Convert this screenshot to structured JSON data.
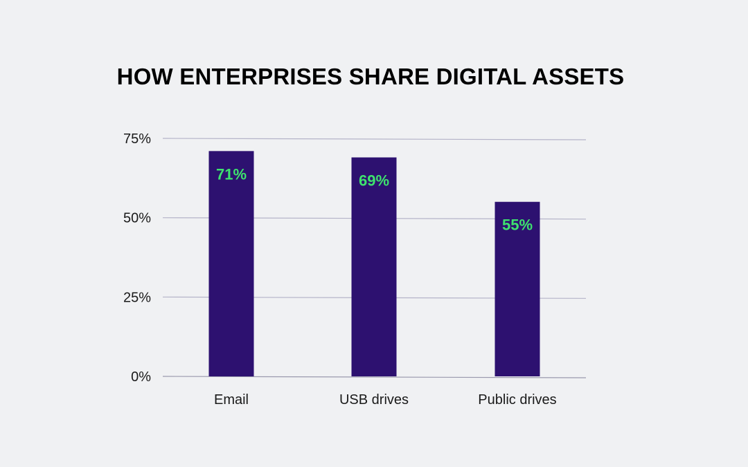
{
  "chart_data": {
    "type": "bar",
    "title": "HOW ENTERPRISES SHARE DIGITAL ASSETS",
    "xlabel": "",
    "ylabel": "",
    "categories": [
      "Email",
      "USB drives",
      "Public drives"
    ],
    "values": [
      71,
      69,
      55
    ],
    "data_labels": [
      "71%",
      "69%",
      "55%"
    ],
    "ylim": [
      0,
      75
    ],
    "yticks": [
      0,
      25,
      50,
      75
    ],
    "ytick_labels": [
      "0%",
      "25%",
      "50%",
      "75%"
    ],
    "grid": true,
    "legend": "none",
    "colors": {
      "bar": "#2d1170",
      "data_label": "#3ee36e",
      "grid": "#b4b3c8",
      "background": "#f0f1f3"
    }
  }
}
